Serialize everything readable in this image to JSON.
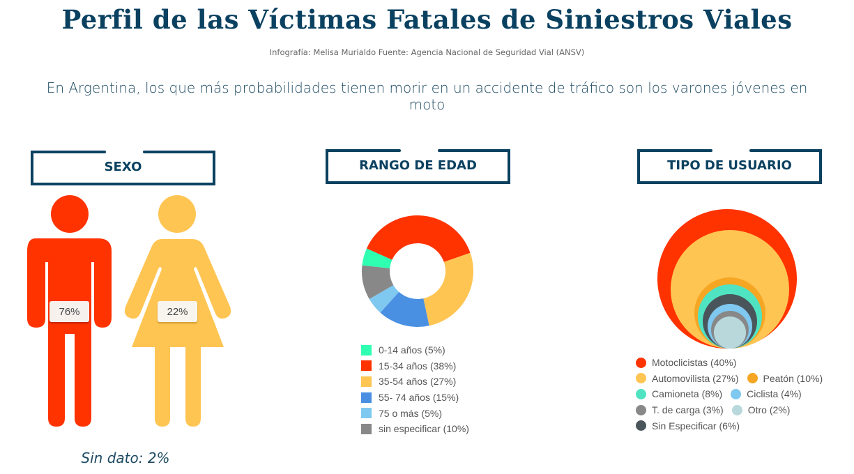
{
  "header": {
    "title": "Perfil de las Víctimas Fatales de Siniestros Viales",
    "credit": "Infografía: Melisa Murialdo Fuente: Agencia Nacional de Seguridad Vial (ANSV)",
    "lead": "En Argentina, los que más probabilidades tienen morir en un accidente de tráfico son los varones jóvenes en moto"
  },
  "sections": {
    "sexo": {
      "title": "SEXO"
    },
    "edad": {
      "title": "RANGO DE EDAD"
    },
    "usuario": {
      "title": "TIPO DE USUARIO"
    }
  },
  "colors": {
    "navy": "#0b4160",
    "male": "#ff3300",
    "female": "#ffc553"
  },
  "sexo": {
    "male_label": "76%",
    "female_label": "22%",
    "sin_dato": "Sin dato: 2%"
  },
  "edad_legend": [
    {
      "label": "0-14 años (5%)",
      "color": "#2effb0"
    },
    {
      "label": "15-34 años (38%)",
      "color": "#ff3300"
    },
    {
      "label": "35-54 años (27%)",
      "color": "#ffc553"
    },
    {
      "label": "55- 74 años (15%)",
      "color": "#4a90e2"
    },
    {
      "label": "75 o más (5%)",
      "color": "#7fc8f0"
    },
    {
      "label": "sin especificar (10%)",
      "color": "#888888"
    }
  ],
  "usuario_legend": {
    "row1": [
      {
        "label": "Motoclicistas (40%)",
        "color": "#ff3300"
      }
    ],
    "row2": [
      {
        "label": "Automovilista (27%)",
        "color": "#ffc553"
      },
      {
        "label": "Peatón (10%)",
        "color": "#f5a623"
      }
    ],
    "row3": [
      {
        "label": "Camioneta (8%)",
        "color": "#50e3c2"
      },
      {
        "label": "Ciclista (4%)",
        "color": "#7fc8f0"
      }
    ],
    "row4": [
      {
        "label": "T. de carga (3%)",
        "color": "#888888"
      },
      {
        "label": "Otro (2%)",
        "color": "#b8d8dc"
      }
    ],
    "row5": [
      {
        "label": "Sin Especificar (6%)",
        "color": "#4a555b"
      }
    ]
  },
  "chart_data": [
    {
      "type": "pictogram",
      "title": "SEXO",
      "categories": [
        "Varones",
        "Mujeres",
        "Sin dato"
      ],
      "values": [
        76,
        22,
        2
      ],
      "unit": "%"
    },
    {
      "type": "pie",
      "subtype": "donut",
      "title": "RANGO DE EDAD",
      "categories": [
        "0-14 años",
        "15-34 años",
        "35-54 años",
        "55- 74 años",
        "75 o más",
        "sin especificar"
      ],
      "values": [
        5,
        38,
        27,
        15,
        5,
        10
      ],
      "colors": [
        "#2effb0",
        "#ff3300",
        "#ffc553",
        "#4a90e2",
        "#7fc8f0",
        "#888888"
      ],
      "unit": "%",
      "legend_position": "bottom"
    },
    {
      "type": "bubble",
      "subtype": "nested-circles",
      "title": "TIPO DE USUARIO",
      "categories": [
        "Motoclicistas",
        "Automovilista",
        "Peatón",
        "Camioneta",
        "Sin Especificar",
        "Ciclista",
        "T. de carga",
        "Otro"
      ],
      "values": [
        40,
        27,
        10,
        8,
        6,
        4,
        3,
        2
      ],
      "colors": [
        "#ff3300",
        "#ffc553",
        "#f5a623",
        "#50e3c2",
        "#4a555b",
        "#7fc8f0",
        "#888888",
        "#b8d8dc"
      ],
      "unit": "%",
      "legend_position": "bottom"
    }
  ]
}
